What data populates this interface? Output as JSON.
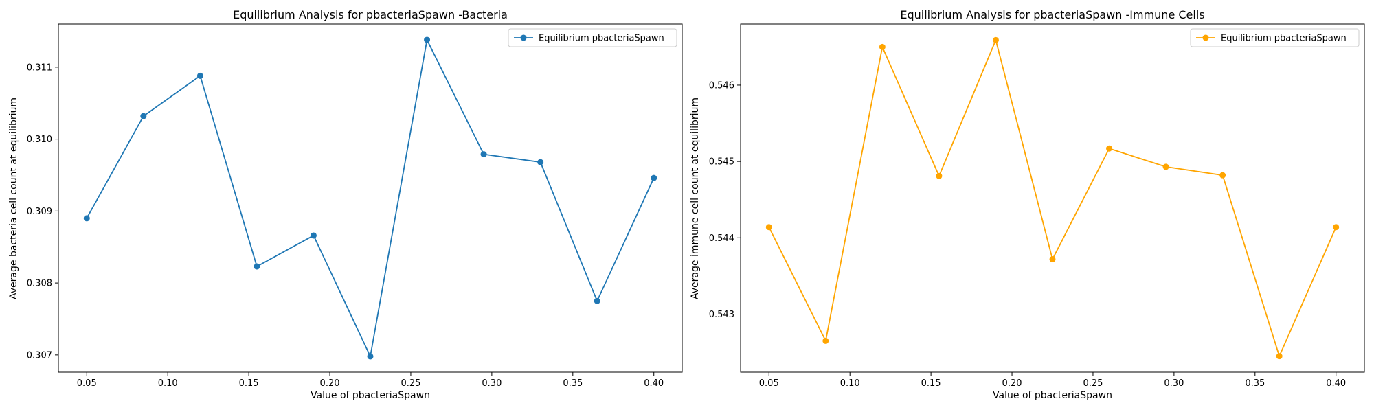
{
  "chart_data": [
    {
      "type": "line",
      "title": "Equilibrium Analysis for pbacteriaSpawn -Bacteria",
      "xlabel": "Value of pbacteriaSpawn",
      "ylabel": "Average bacteria cell count at equilibrium",
      "x": [
        0.05,
        0.085,
        0.12,
        0.155,
        0.19,
        0.225,
        0.26,
        0.295,
        0.33,
        0.365,
        0.4
      ],
      "series": [
        {
          "name": "Equilibrium pbacteriaSpawn",
          "color": "#1f77b4",
          "marker": "circle",
          "values": [
            0.3089,
            0.31032,
            0.31088,
            0.30823,
            0.30866,
            0.30698,
            0.31138,
            0.30979,
            0.30968,
            0.30775,
            0.30946
          ]
        }
      ],
      "xlim": [
        0.0325,
        0.4175
      ],
      "ylim": [
        0.30676,
        0.3116
      ],
      "xticks": [
        0.05,
        0.1,
        0.15,
        0.2,
        0.25,
        0.3,
        0.35,
        0.4
      ],
      "xtick_labels": [
        "0.05",
        "0.10",
        "0.15",
        "0.20",
        "0.25",
        "0.30",
        "0.35",
        "0.40"
      ],
      "yticks": [
        0.307,
        0.308,
        0.309,
        0.31,
        0.311
      ],
      "ytick_labels": [
        "0.307",
        "0.308",
        "0.309",
        "0.310",
        "0.311"
      ],
      "legend_position": "top-right",
      "grid": false
    },
    {
      "type": "line",
      "title": "Equilibrium Analysis for pbacteriaSpawn -Immune Cells",
      "xlabel": "Value of pbacteriaSpawn",
      "ylabel": "Average immune cell count at equilibrium",
      "x": [
        0.05,
        0.085,
        0.12,
        0.155,
        0.19,
        0.225,
        0.26,
        0.295,
        0.33,
        0.365,
        0.4
      ],
      "series": [
        {
          "name": "Equilibrium pbacteriaSpawn",
          "color": "#ffa500",
          "marker": "circle",
          "values": [
            0.54414,
            0.54265,
            0.5465,
            0.54481,
            0.54659,
            0.54372,
            0.54517,
            0.54493,
            0.54482,
            0.54245,
            0.54414
          ]
        }
      ],
      "xlim": [
        0.0325,
        0.4175
      ],
      "ylim": [
        0.54224,
        0.5468
      ],
      "xticks": [
        0.05,
        0.1,
        0.15,
        0.2,
        0.25,
        0.3,
        0.35,
        0.4
      ],
      "xtick_labels": [
        "0.05",
        "0.10",
        "0.15",
        "0.20",
        "0.25",
        "0.30",
        "0.35",
        "0.40"
      ],
      "yticks": [
        0.543,
        0.544,
        0.545,
        0.546
      ],
      "ytick_labels": [
        "0.543",
        "0.544",
        "0.545",
        "0.546"
      ],
      "legend_position": "top-right",
      "grid": false
    }
  ]
}
